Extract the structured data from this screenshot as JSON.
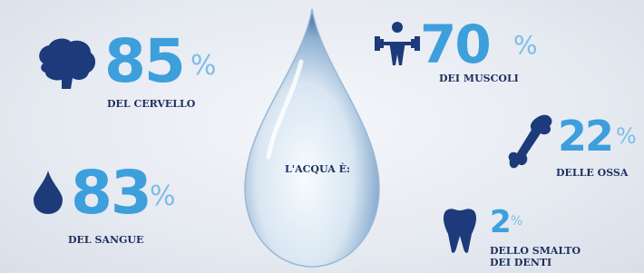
{
  "center_label": "L'ACQUA È:",
  "items": [
    {
      "value": 85,
      "unit": "%",
      "label": "DEL CERVELLO"
    },
    {
      "value": 83,
      "unit": "%",
      "label": "DEL SANGUE"
    },
    {
      "value": 70,
      "unit": "%",
      "label": "DEI MUSCOLI"
    },
    {
      "value": 22,
      "unit": "%",
      "label": "DELLE OSSA"
    },
    {
      "value": 2,
      "unit": "%",
      "label": "DELLO SMALTO DEI DENTI"
    }
  ]
}
